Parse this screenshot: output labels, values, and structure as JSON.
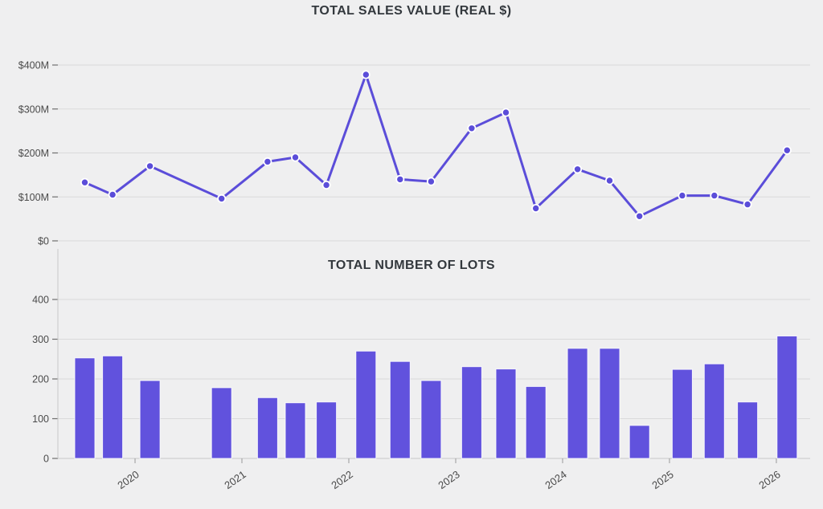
{
  "page": {
    "background": "#efeff0"
  },
  "chart_data": [
    {
      "id": "sales-value",
      "type": "line",
      "title": "TOTAL SALES VALUE (REAL $)",
      "color": "#5b4dd9",
      "ylabel": "",
      "xlabel": "",
      "ylim": [
        0,
        400
      ],
      "xlim": [
        2019.278,
        2026.316
      ],
      "grid": true,
      "legend": "none",
      "y_ticks": [
        {
          "value": 400,
          "label": "$400M"
        },
        {
          "value": 300,
          "label": "$300M"
        },
        {
          "value": 200,
          "label": "$200M"
        },
        {
          "value": 100,
          "label": "$100M"
        },
        {
          "value": 0,
          "label": "$0"
        }
      ],
      "x": [
        2019.53,
        2019.79,
        2020.14,
        2020.81,
        2021.24,
        2021.5,
        2021.79,
        2022.16,
        2022.48,
        2022.77,
        2023.15,
        2023.47,
        2023.75,
        2024.14,
        2024.44,
        2024.72,
        2025.12,
        2025.42,
        2025.73,
        2026.1
      ],
      "values": [
        133,
        105,
        170,
        96,
        180,
        190,
        127,
        378,
        140,
        135,
        256,
        292,
        74,
        163,
        137,
        56,
        103,
        103,
        83,
        206
      ],
      "unit": "million dollars (real)"
    },
    {
      "id": "lots",
      "type": "bar",
      "title": "TOTAL NUMBER OF LOTS",
      "color": "#6152dd",
      "ylabel": "",
      "xlabel": "",
      "ylim": [
        0,
        400
      ],
      "xlim": [
        2019.278,
        2026.316
      ],
      "grid": true,
      "legend": "none",
      "y_ticks": [
        {
          "value": 400,
          "label": "400"
        },
        {
          "value": 300,
          "label": "300"
        },
        {
          "value": 200,
          "label": "200"
        },
        {
          "value": 100,
          "label": "100"
        },
        {
          "value": 0,
          "label": "0"
        }
      ],
      "x_ticks": [
        {
          "value": 2020,
          "label": "2020"
        },
        {
          "value": 2021,
          "label": "2021"
        },
        {
          "value": 2022,
          "label": "2022"
        },
        {
          "value": 2023,
          "label": "2023"
        },
        {
          "value": 2024,
          "label": "2024"
        },
        {
          "value": 2025,
          "label": "2025"
        },
        {
          "value": 2026,
          "label": "2026"
        }
      ],
      "x": [
        2019.53,
        2019.79,
        2020.14,
        2020.81,
        2021.24,
        2021.5,
        2021.79,
        2022.16,
        2022.48,
        2022.77,
        2023.15,
        2023.47,
        2023.75,
        2024.14,
        2024.44,
        2024.72,
        2025.12,
        2025.42,
        2025.73,
        2026.1
      ],
      "values": [
        253,
        258,
        196,
        178,
        153,
        140,
        142,
        270,
        244,
        196,
        231,
        225,
        181,
        277,
        277,
        83,
        224,
        238,
        142,
        308
      ],
      "unit": "lots"
    }
  ]
}
